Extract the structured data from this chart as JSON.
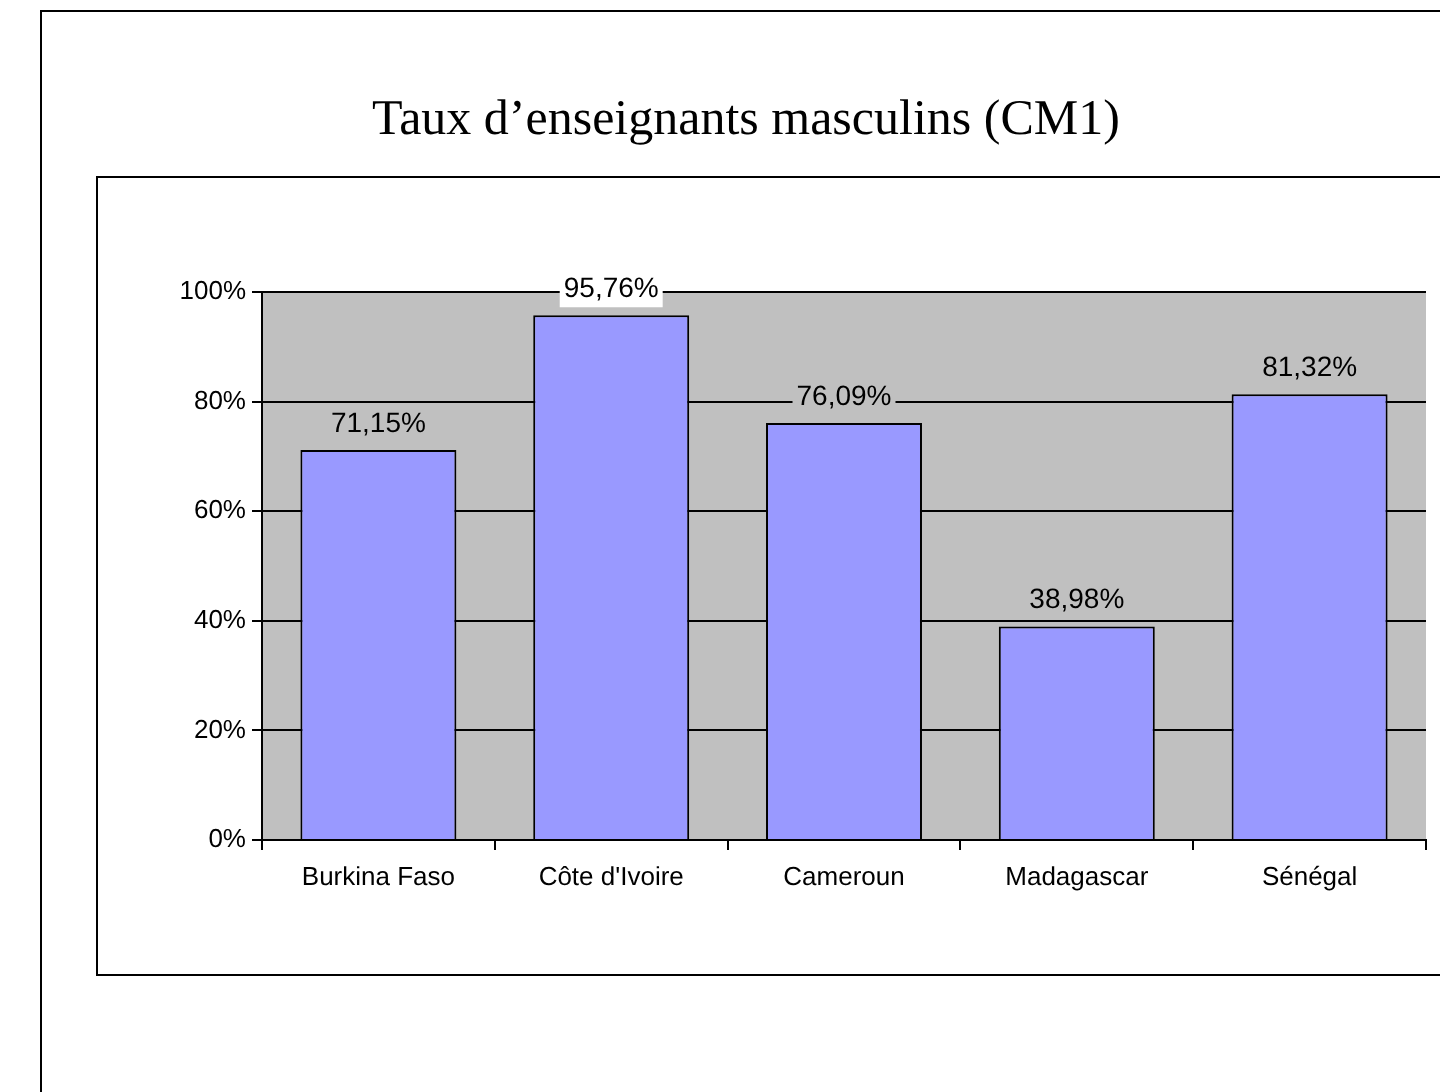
{
  "chart_data": {
    "type": "bar",
    "title": "Taux d’enseignants masculins (CM1)",
    "categories": [
      "Burkina Faso",
      "Côte d'Ivoire",
      "Cameroun",
      "Madagascar",
      "Sénégal"
    ],
    "values": [
      71.15,
      95.76,
      76.09,
      38.98,
      81.32
    ],
    "value_labels": [
      "71,15%",
      "95,76%",
      "76,09%",
      "38,98%",
      "81,32%"
    ],
    "color": "#9999ff",
    "ylim": [
      0,
      100
    ],
    "yticks": [
      {
        "value": 0,
        "label": "0%"
      },
      {
        "value": 20,
        "label": "20%"
      },
      {
        "value": 40,
        "label": "40%"
      },
      {
        "value": 60,
        "label": "60%"
      },
      {
        "value": 80,
        "label": "80%"
      },
      {
        "value": 100,
        "label": "100%"
      }
    ],
    "grid": "y",
    "legend": false
  }
}
